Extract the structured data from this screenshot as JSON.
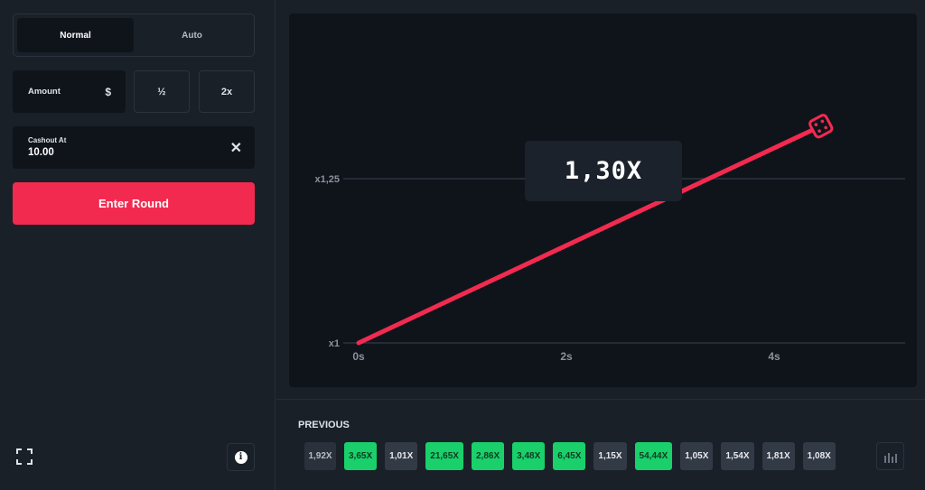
{
  "bet_panel": {
    "modes": [
      "Normal",
      "Auto"
    ],
    "active_mode": "Normal",
    "amount_label": "Amount",
    "currency_symbol": "$",
    "half_label": "½",
    "double_label": "2x",
    "cashout_label": "Cashout At",
    "cashout_value": "10.00",
    "clear_symbol": "✕",
    "enter_label": "Enter Round",
    "fullscreen_icon": "fullscreen-icon",
    "info_icon": "info-icon"
  },
  "game": {
    "current_multiplier": "1,30X",
    "accent_color": "#f32a4f"
  },
  "chart_data": {
    "type": "line",
    "title": "",
    "xlabel": "",
    "ylabel": "",
    "x_ticks": [
      "0s",
      "2s",
      "4s"
    ],
    "y_ticks": [
      "x1",
      "x1,25"
    ],
    "xlim": [
      0,
      5.2
    ],
    "ylim": [
      1,
      1.25
    ],
    "series": [
      {
        "x": [
          0,
          4.45
        ],
        "y": [
          1,
          1.33
        ]
      }
    ],
    "grid": true
  },
  "history": {
    "title": "PREVIOUS",
    "items": [
      {
        "label": "1,92X",
        "status": "fade"
      },
      {
        "label": "3,65X",
        "status": "green"
      },
      {
        "label": "1,01X",
        "status": "grey"
      },
      {
        "label": "21,65X",
        "status": "green"
      },
      {
        "label": "2,86X",
        "status": "green"
      },
      {
        "label": "3,48X",
        "status": "green"
      },
      {
        "label": "6,45X",
        "status": "green"
      },
      {
        "label": "1,15X",
        "status": "grey"
      },
      {
        "label": "54,44X",
        "status": "green"
      },
      {
        "label": "1,05X",
        "status": "grey"
      },
      {
        "label": "1,54X",
        "status": "grey"
      },
      {
        "label": "1,81X",
        "status": "grey"
      },
      {
        "label": "1,08X",
        "status": "grey"
      }
    ],
    "stats_icon": "bar-chart-icon"
  }
}
